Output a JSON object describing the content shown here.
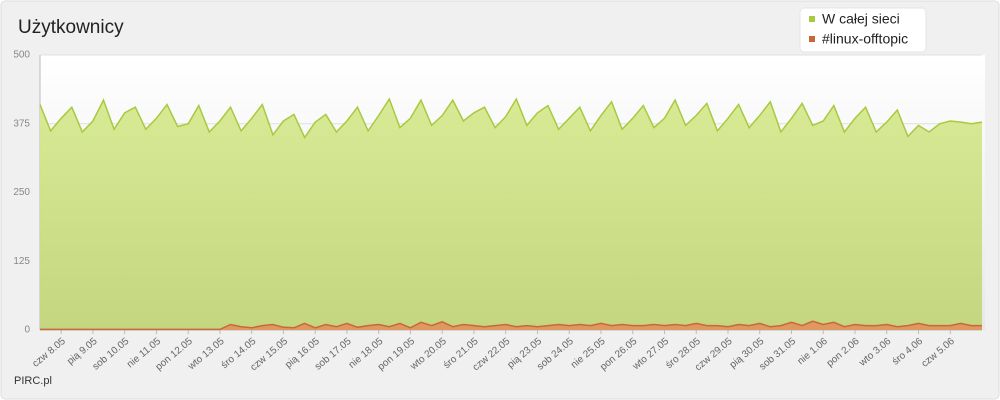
{
  "chart_data": {
    "type": "area",
    "title": "Użytkownicy",
    "credit": "PIRC.pl",
    "categories": [
      null,
      null,
      "czw  8.05",
      null,
      null,
      "pią  9.05",
      null,
      null,
      "sob 10.05",
      null,
      null,
      "nie 11.05",
      null,
      null,
      "pon 12.05",
      null,
      null,
      "wto 13.05",
      null,
      null,
      "śro 14.05",
      null,
      null,
      "czw 15.05",
      null,
      null,
      "pią 16.05",
      null,
      null,
      "sob 17.05",
      null,
      null,
      "nie 18.05",
      null,
      null,
      "pon 19.05",
      null,
      null,
      "wto 20.05",
      null,
      null,
      "śro 21.05",
      null,
      null,
      "czw 22.05",
      null,
      null,
      "pią 23.05",
      null,
      null,
      "sob 24.05",
      null,
      null,
      "nie 25.05",
      null,
      null,
      "pon 26.05",
      null,
      null,
      "wto 27.05",
      null,
      null,
      "śro 28.05",
      null,
      null,
      "czw 29.05",
      null,
      null,
      "pią 30.05",
      null,
      null,
      "sob 31.05",
      null,
      null,
      "nie  1.06",
      null,
      null,
      "pon  2.06",
      null,
      null,
      "wto  3.06",
      null,
      null,
      "śro  4.06",
      null,
      null,
      "czw  5.06",
      null,
      null,
      null
    ],
    "series": [
      {
        "name": "W całej sieci",
        "color": "#a8c940",
        "fill": "#d3e58c",
        "values": [
          410,
          362,
          385,
          405,
          360,
          380,
          418,
          365,
          395,
          405,
          365,
          385,
          410,
          370,
          375,
          408,
          360,
          380,
          405,
          362,
          385,
          410,
          355,
          380,
          392,
          350,
          378,
          392,
          360,
          380,
          405,
          362,
          390,
          420,
          368,
          385,
          418,
          372,
          390,
          418,
          380,
          395,
          405,
          368,
          388,
          420,
          372,
          395,
          408,
          365,
          385,
          405,
          362,
          390,
          415,
          365,
          385,
          408,
          368,
          385,
          418,
          372,
          390,
          412,
          362,
          385,
          410,
          368,
          390,
          415,
          360,
          385,
          412,
          372,
          380,
          408,
          360,
          385,
          405,
          360,
          378,
          400,
          352,
          372,
          360,
          375,
          380,
          378,
          375,
          378
        ]
      },
      {
        "name": "#linux-offtopic",
        "color": "#c8683a",
        "fill": "#e0955e",
        "values": [
          1,
          1,
          1,
          1,
          1,
          1,
          1,
          1,
          1,
          1,
          1,
          1,
          1,
          1,
          1,
          1,
          1,
          1,
          10,
          6,
          4,
          8,
          10,
          5,
          4,
          12,
          4,
          10,
          6,
          12,
          5,
          8,
          10,
          6,
          12,
          4,
          14,
          8,
          15,
          6,
          10,
          8,
          6,
          8,
          10,
          6,
          8,
          6,
          8,
          10,
          8,
          10,
          8,
          12,
          8,
          10,
          8,
          8,
          10,
          8,
          10,
          8,
          12,
          8,
          8,
          6,
          10,
          8,
          12,
          6,
          8,
          14,
          8,
          16,
          10,
          14,
          6,
          10,
          8,
          8,
          10,
          6,
          8,
          12,
          8,
          8,
          8,
          12,
          8,
          8
        ]
      }
    ],
    "ylim": [
      0,
      500
    ],
    "yticks": [
      0,
      125,
      250,
      375,
      500
    ],
    "grid": true,
    "legend": "top-right"
  }
}
